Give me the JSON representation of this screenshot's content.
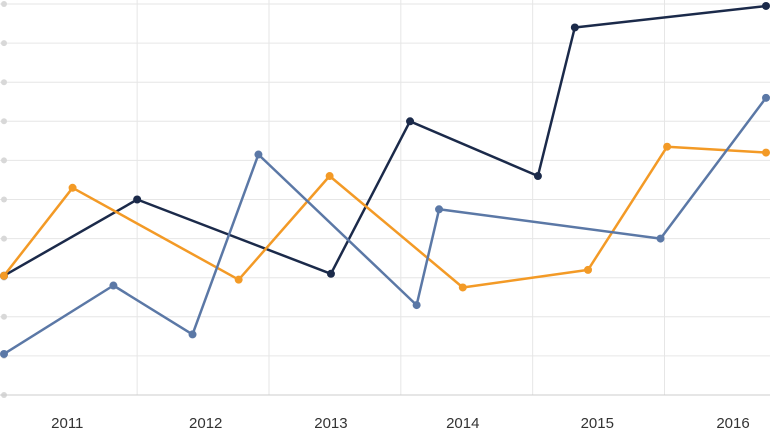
{
  "chart_data": {
    "type": "line",
    "categories": [
      "2011",
      "2012",
      "2013",
      "2014",
      "2015",
      "2016"
    ],
    "x": [
      2010.4,
      2010.95,
      2011.6,
      2012.3,
      2012.95,
      2013.5,
      2014.15,
      2014.9,
      2015.55,
      2016.2
    ],
    "ylim": [
      0,
      10
    ],
    "grid": true,
    "series": [
      {
        "color": "#1b2a4a",
        "points": [
          [
            2010.42,
            3.05
          ],
          [
            2011.43,
            5.0
          ],
          [
            2012.9,
            3.1
          ],
          [
            2013.5,
            7.0
          ],
          [
            2014.47,
            5.6
          ],
          [
            2014.75,
            9.4
          ],
          [
            2016.2,
            9.95
          ]
        ]
      },
      {
        "color": "#f39a26",
        "points": [
          [
            2010.42,
            3.05
          ],
          [
            2010.94,
            5.3
          ],
          [
            2012.2,
            2.95
          ],
          [
            2012.89,
            5.6
          ],
          [
            2013.9,
            2.75
          ],
          [
            2014.85,
            3.2
          ],
          [
            2015.45,
            6.35
          ],
          [
            2016.2,
            6.2
          ]
        ]
      },
      {
        "color": "#5b78a6",
        "points": [
          [
            2010.42,
            1.05
          ],
          [
            2011.25,
            2.8
          ],
          [
            2011.85,
            1.55
          ],
          [
            2012.35,
            6.15
          ],
          [
            2013.55,
            2.3
          ],
          [
            2013.72,
            4.75
          ],
          [
            2015.4,
            4.0
          ],
          [
            2016.2,
            7.6
          ]
        ]
      }
    ]
  }
}
